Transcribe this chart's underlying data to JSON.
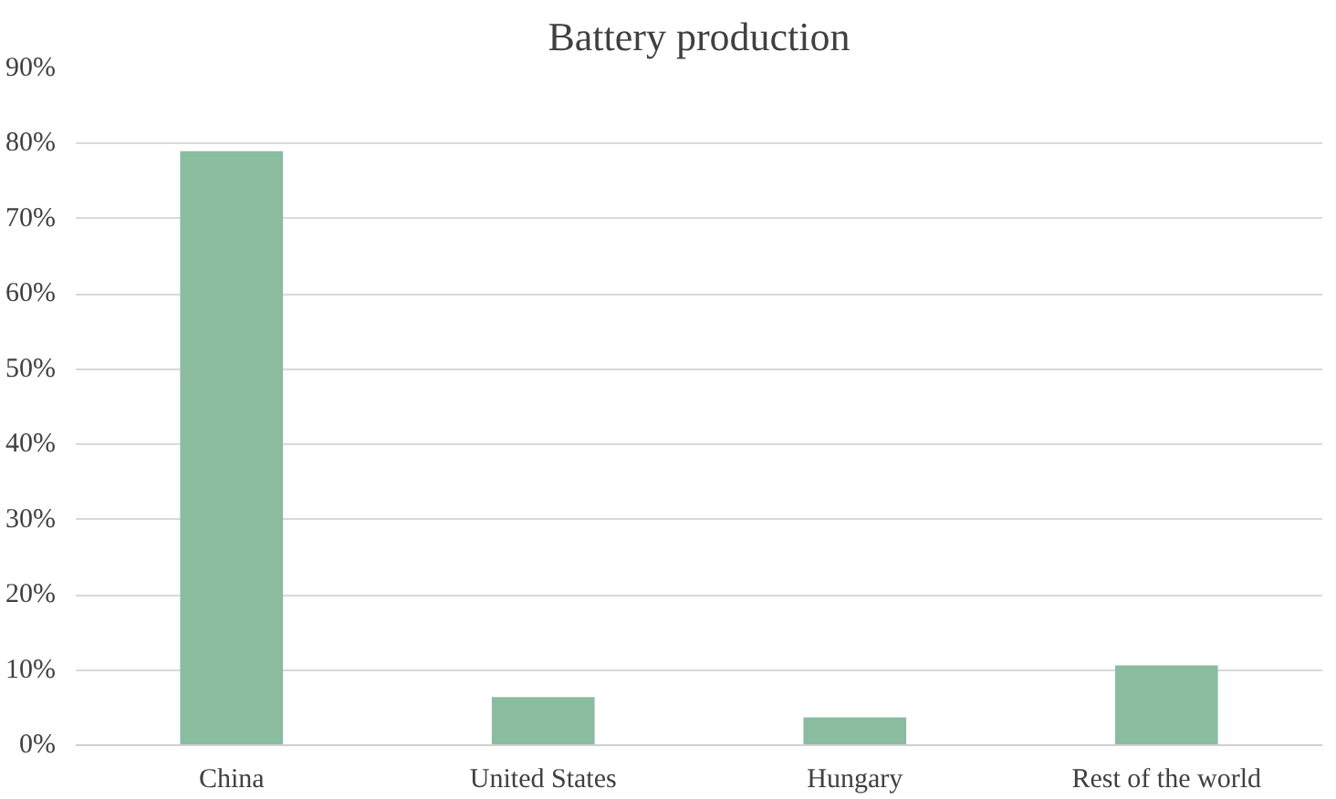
{
  "chart_data": {
    "type": "bar",
    "title": "Battery production",
    "categories": [
      "China",
      "United States",
      "Hungary",
      "Rest of the world"
    ],
    "values": [
      79,
      6.4,
      3.7,
      10.6
    ],
    "color": "#8bbc9f",
    "ylim": [
      0,
      90
    ],
    "yticks": [
      {
        "value": 0,
        "label": "0%"
      },
      {
        "value": 10,
        "label": "10%"
      },
      {
        "value": 20,
        "label": "20%"
      },
      {
        "value": 30,
        "label": "30%"
      },
      {
        "value": 40,
        "label": "40%"
      },
      {
        "value": 50,
        "label": "50%"
      },
      {
        "value": 60,
        "label": "60%"
      },
      {
        "value": 70,
        "label": "70%"
      },
      {
        "value": 80,
        "label": "80%"
      },
      {
        "value": 90,
        "label": "90%"
      }
    ],
    "grid": "y"
  }
}
